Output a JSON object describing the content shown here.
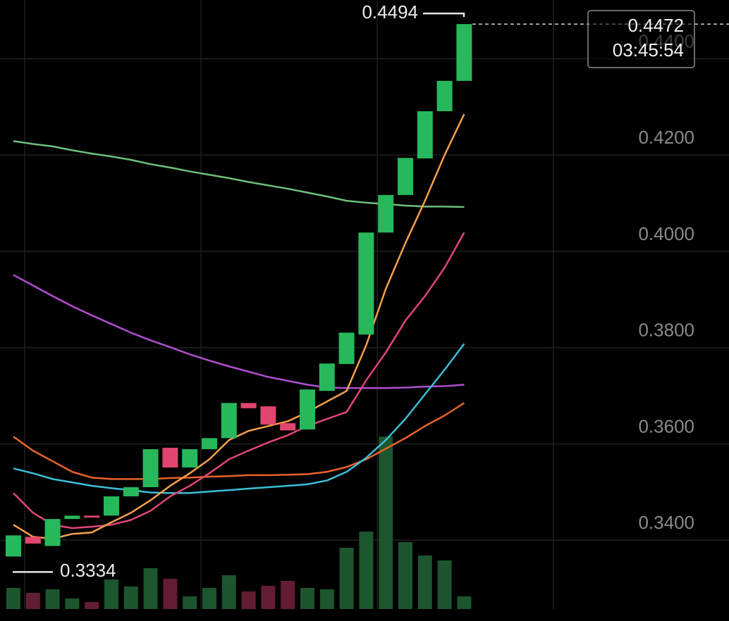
{
  "chart_data": {
    "type": "candlestick",
    "open": [
      0.3366,
      0.3407,
      0.3388,
      0.3444,
      0.3451,
      0.3451,
      0.3491,
      0.351,
      0.3592,
      0.3551,
      0.3589,
      0.3612,
      0.3685,
      0.3678,
      0.3643,
      0.363,
      0.371,
      0.3766,
      0.3827,
      0.4039,
      0.4117,
      0.4193,
      0.4291,
      0.4354
    ],
    "high": 0.4494,
    "low": 0.3334,
    "close": [
      0.341,
      0.3393,
      0.3444,
      0.3451,
      0.3447,
      0.3491,
      0.351,
      0.3589,
      0.3551,
      0.3589,
      0.3612,
      0.3685,
      0.3674,
      0.364,
      0.3628,
      0.3713,
      0.3767,
      0.3831,
      0.4039,
      0.4117,
      0.4194,
      0.4291,
      0.4354,
      0.4472
    ],
    "volume": [
      30,
      23,
      28,
      15,
      10,
      42,
      32,
      58,
      43,
      18,
      30,
      48,
      25,
      33,
      40,
      30,
      28,
      87,
      110,
      245,
      95,
      76,
      69,
      18
    ],
    "up_color": "#27b85c",
    "down_color": "#e0466e",
    "volume_up_color": "#1f5e33",
    "volume_down_color": "#6e2038",
    "moving_averages": [
      {
        "color": "#6dbf7a",
        "values": [
          0.4229,
          0.4223,
          0.4218,
          0.421,
          0.4203,
          0.4197,
          0.419,
          0.4181,
          0.4174,
          0.4166,
          0.4159,
          0.4152,
          0.4144,
          0.4137,
          0.413,
          0.4122,
          0.4114,
          0.4105,
          0.4101,
          0.4098,
          0.4095,
          0.4093,
          0.4093,
          0.4092
        ]
      },
      {
        "color": "#b04fd0",
        "values": [
          0.3951,
          0.3929,
          0.3907,
          0.3886,
          0.3867,
          0.3849,
          0.3831,
          0.3815,
          0.3801,
          0.3786,
          0.3773,
          0.3761,
          0.375,
          0.3739,
          0.3731,
          0.3723,
          0.3717,
          0.3716,
          0.3716,
          0.3716,
          0.3717,
          0.3719,
          0.372,
          0.3723
        ]
      },
      {
        "color": "#e8632a",
        "values": [
          0.3615,
          0.3586,
          0.3564,
          0.3542,
          0.353,
          0.3527,
          0.3527,
          0.3527,
          0.3529,
          0.353,
          0.3532,
          0.3533,
          0.3535,
          0.3535,
          0.3536,
          0.3537,
          0.3542,
          0.3552,
          0.3568,
          0.359,
          0.3612,
          0.3637,
          0.3659,
          0.3685
        ]
      },
      {
        "color": "#3bbfd6",
        "values": [
          0.3549,
          0.3539,
          0.3527,
          0.352,
          0.3513,
          0.3508,
          0.3504,
          0.3499,
          0.3498,
          0.3498,
          0.3501,
          0.3504,
          0.3507,
          0.351,
          0.3513,
          0.3516,
          0.3524,
          0.3542,
          0.3571,
          0.3608,
          0.3652,
          0.3703,
          0.3754,
          0.3808
        ]
      },
      {
        "color": "#e0457a",
        "values": [
          0.3498,
          0.3457,
          0.3432,
          0.3425,
          0.3428,
          0.3432,
          0.3442,
          0.3461,
          0.3491,
          0.3513,
          0.3539,
          0.3568,
          0.3586,
          0.3603,
          0.3618,
          0.3637,
          0.3652,
          0.3666,
          0.3732,
          0.379,
          0.3856,
          0.3907,
          0.3966,
          0.4039
        ]
      },
      {
        "color": "#f5a04a",
        "values": [
          0.3432,
          0.3407,
          0.3403,
          0.3413,
          0.3416,
          0.3437,
          0.3457,
          0.3483,
          0.3513,
          0.3539,
          0.3568,
          0.3608,
          0.3627,
          0.3637,
          0.3647,
          0.3666,
          0.3688,
          0.371,
          0.3805,
          0.3922,
          0.4017,
          0.4105,
          0.42,
          0.4285
        ]
      }
    ],
    "ylim": [
      0.3257,
      0.4522
    ],
    "yticks": [
      {
        "value": 0.34,
        "label": "0.3400"
      },
      {
        "value": 0.36,
        "label": "0.3600"
      },
      {
        "value": 0.38,
        "label": "0.3800"
      },
      {
        "value": 0.4,
        "label": "0.4000"
      },
      {
        "value": 0.42,
        "label": "0.4200"
      },
      {
        "value": 0.44,
        "label": "0.4400"
      }
    ],
    "volume_lim": [
      0,
      300
    ],
    "grid": true,
    "last_price": 0.4472,
    "last_time": "03:45:54"
  }
}
